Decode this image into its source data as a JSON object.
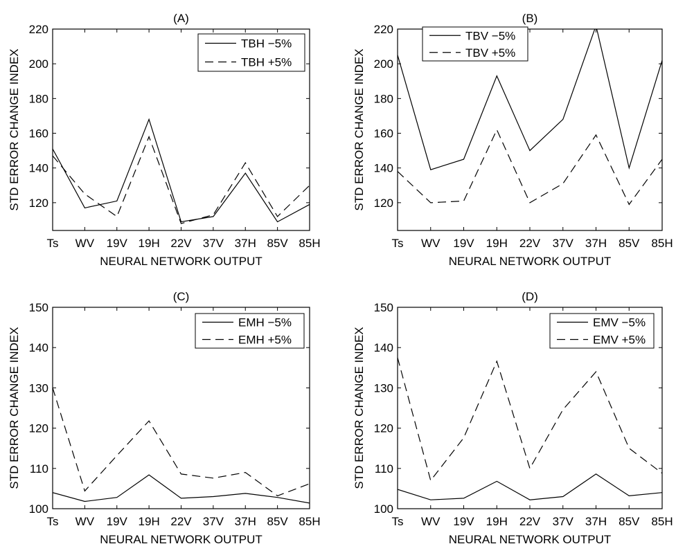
{
  "chart_data": [
    {
      "type": "line",
      "title": "(A)",
      "xlabel": "NEURAL NETWORK OUTPUT",
      "ylabel": "STD ERROR CHANGE INDEX",
      "categories": [
        "Ts",
        "WV",
        "19V",
        "19H",
        "22V",
        "37V",
        "37H",
        "85V",
        "85H"
      ],
      "ylim": [
        104,
        220
      ],
      "yticks": [
        "120",
        "140",
        "160",
        "180",
        "200",
        "220"
      ],
      "legend_position": "top-right",
      "series": [
        {
          "name": "TBH −5%",
          "style": "solid",
          "values": [
            151,
            117,
            121,
            168,
            109,
            112,
            137,
            109,
            119
          ]
        },
        {
          "name": "TBH +5%",
          "style": "dashed",
          "values": [
            147,
            125,
            112,
            158,
            108,
            113,
            143,
            112,
            130
          ]
        }
      ]
    },
    {
      "type": "line",
      "title": "(B)",
      "xlabel": "NEURAL NETWORK OUTPUT",
      "ylabel": "STD ERROR CHANGE INDEX",
      "categories": [
        "Ts",
        "WV",
        "19V",
        "19H",
        "22V",
        "37V",
        "37H",
        "85V",
        "85H"
      ],
      "ylim": [
        104,
        220
      ],
      "yticks": [
        "120",
        "140",
        "160",
        "180",
        "200",
        "220"
      ],
      "legend_position": "top-left",
      "series": [
        {
          "name": "TBV −5%",
          "style": "solid",
          "values": [
            205,
            139,
            145,
            193,
            150,
            168,
            222,
            140,
            202
          ]
        },
        {
          "name": "TBV +5%",
          "style": "dashed",
          "values": [
            138,
            120,
            121,
            162,
            120,
            131,
            159,
            119,
            145
          ]
        }
      ]
    },
    {
      "type": "line",
      "title": "(C)",
      "xlabel": "NEURAL NETWORK OUTPUT",
      "ylabel": "STD ERROR CHANGE INDEX",
      "categories": [
        "Ts",
        "WV",
        "19V",
        "19H",
        "22V",
        "37V",
        "37H",
        "85V",
        "85H"
      ],
      "ylim": [
        100,
        150
      ],
      "yticks": [
        "100",
        "110",
        "120",
        "130",
        "140",
        "150"
      ],
      "legend_position": "top-right",
      "series": [
        {
          "name": "EMH −5%",
          "style": "solid",
          "values": [
            104,
            101.8,
            102.8,
            108.4,
            102.6,
            103.0,
            103.8,
            102.8,
            101.4
          ]
        },
        {
          "name": "EMH +5%",
          "style": "dashed",
          "values": [
            130,
            104.4,
            113.2,
            121.8,
            108.6,
            107.6,
            109.0,
            103.2,
            106.2
          ]
        }
      ]
    },
    {
      "type": "line",
      "title": "(D)",
      "xlabel": "NEURAL NETWORK OUTPUT",
      "ylabel": "STD ERROR CHANGE INDEX",
      "categories": [
        "Ts",
        "WV",
        "19V",
        "19H",
        "22V",
        "37V",
        "37H",
        "85V",
        "85H"
      ],
      "ylim": [
        100,
        150
      ],
      "yticks": [
        "100",
        "110",
        "120",
        "130",
        "140",
        "150"
      ],
      "legend_position": "top-right",
      "series": [
        {
          "name": "EMV −5%",
          "style": "solid",
          "values": [
            104.8,
            102.2,
            102.6,
            106.8,
            102.2,
            103.0,
            108.6,
            103.2,
            104.0
          ]
        },
        {
          "name": "EMV +5%",
          "style": "dashed",
          "values": [
            137.5,
            107.0,
            117.6,
            136.6,
            110.0,
            124.6,
            134.0,
            115.0,
            108.8
          ]
        }
      ]
    }
  ]
}
